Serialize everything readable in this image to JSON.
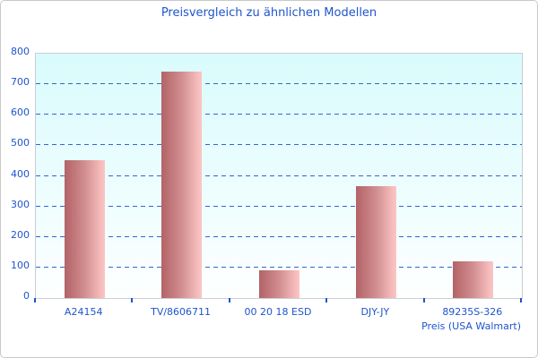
{
  "window": {
    "background": "#ffffff",
    "border_color": "#c8c8c8"
  },
  "chart_data": {
    "type": "bar",
    "title": "Preisvergleich zu ähnlichen Modellen",
    "categories": [
      "A24154",
      "TV/8606711",
      "00 20 18 ESD",
      "DJY-JY",
      "89235S-326"
    ],
    "values": [
      450,
      740,
      90,
      365,
      120
    ],
    "xlabel": "Preis (USA Walmart)",
    "ylabel": "",
    "ylim": [
      0,
      800
    ],
    "ytick_interval": 100,
    "yticks": [
      0,
      100,
      200,
      300,
      400,
      500,
      600,
      700,
      800
    ],
    "grid": "horizontal-dashed",
    "legend": "none",
    "colors": {
      "title_text": "#1f55cc",
      "axis_text": "#1f55cc",
      "gridline": "#3366cc",
      "tick": "#1a56cc",
      "plot_bg_top": "#d9fbfc",
      "plot_bg_bottom": "#feffff",
      "plot_border": "#c9cdd3",
      "axis_line": "#cfcfcf",
      "bar_gradient_left": "#b16468",
      "bar_gradient_mid": "#d18e90",
      "bar_gradient_right": "#fac6c4"
    }
  }
}
